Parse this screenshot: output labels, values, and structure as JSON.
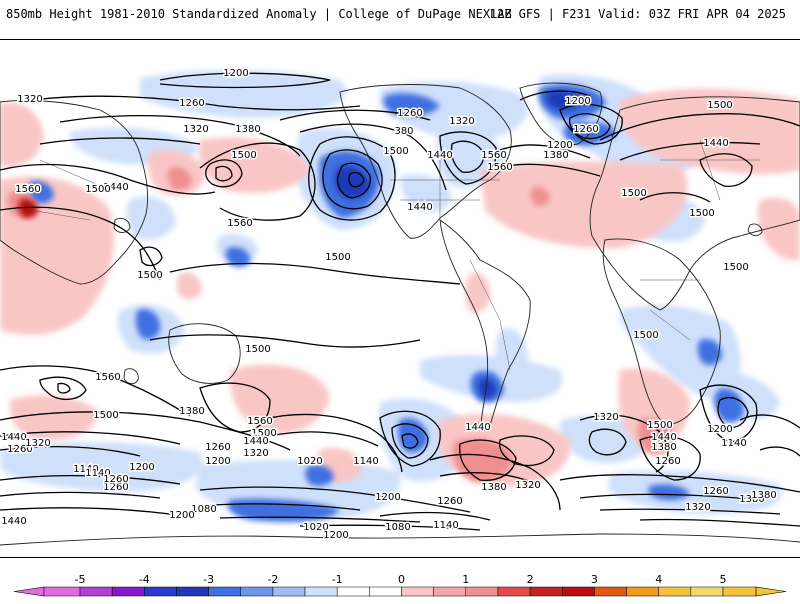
{
  "header": {
    "title": "850mb Height 1981-2010 Standardized Anomaly | College of DuPage NEXLAB",
    "run_info": "12Z GFS | F231 Valid: 03Z FRI APR 04 2025"
  },
  "map": {
    "projection": "equirectangular-global",
    "contour_labels": [
      "1200",
      "1320",
      "1260",
      "1320",
      "1380",
      "1500",
      "1560",
      "1440",
      "1500",
      "1560",
      "1260",
      "380",
      "1320",
      "1440",
      "1500",
      "1560",
      "1200",
      "1260",
      "1200",
      "1380",
      "1500",
      "1440",
      "1500",
      "1500",
      "1500",
      "1500",
      "1440",
      "1560",
      "1500",
      "1500",
      "1500",
      "1560",
      "1500",
      "1380",
      "1560",
      "1500",
      "1440",
      "1320",
      "1260",
      "1200",
      "1140",
      "1260",
      "1020",
      "1140",
      "1080",
      "1200",
      "1200",
      "1440",
      "1320",
      "1380",
      "1320",
      "1500",
      "1440",
      "1380",
      "1260",
      "1200",
      "1140",
      "1260",
      "1380",
      "1320",
      "1020",
      "1080",
      "1200",
      "1140",
      "1260",
      "1440",
      "1260",
      "1320",
      "1200",
      "1140",
      "1260",
      "1380",
      "1440"
    ]
  },
  "colorbar": {
    "tick_labels": [
      "-5",
      "-4",
      "-3",
      "-2",
      "-1",
      "0",
      "1",
      "2",
      "3",
      "4",
      "5"
    ],
    "colors": [
      "#e06ce0",
      "#8a18c8",
      "#1f3ab8",
      "#3f6fe0",
      "#9fbdf0",
      "#cfe0fb",
      "#ffffff",
      "#ffffff",
      "#f9c6c6",
      "#ef8f8f",
      "#e24b4b",
      "#b80e0e",
      "#f39a16",
      "#f3c43a"
    ]
  }
}
